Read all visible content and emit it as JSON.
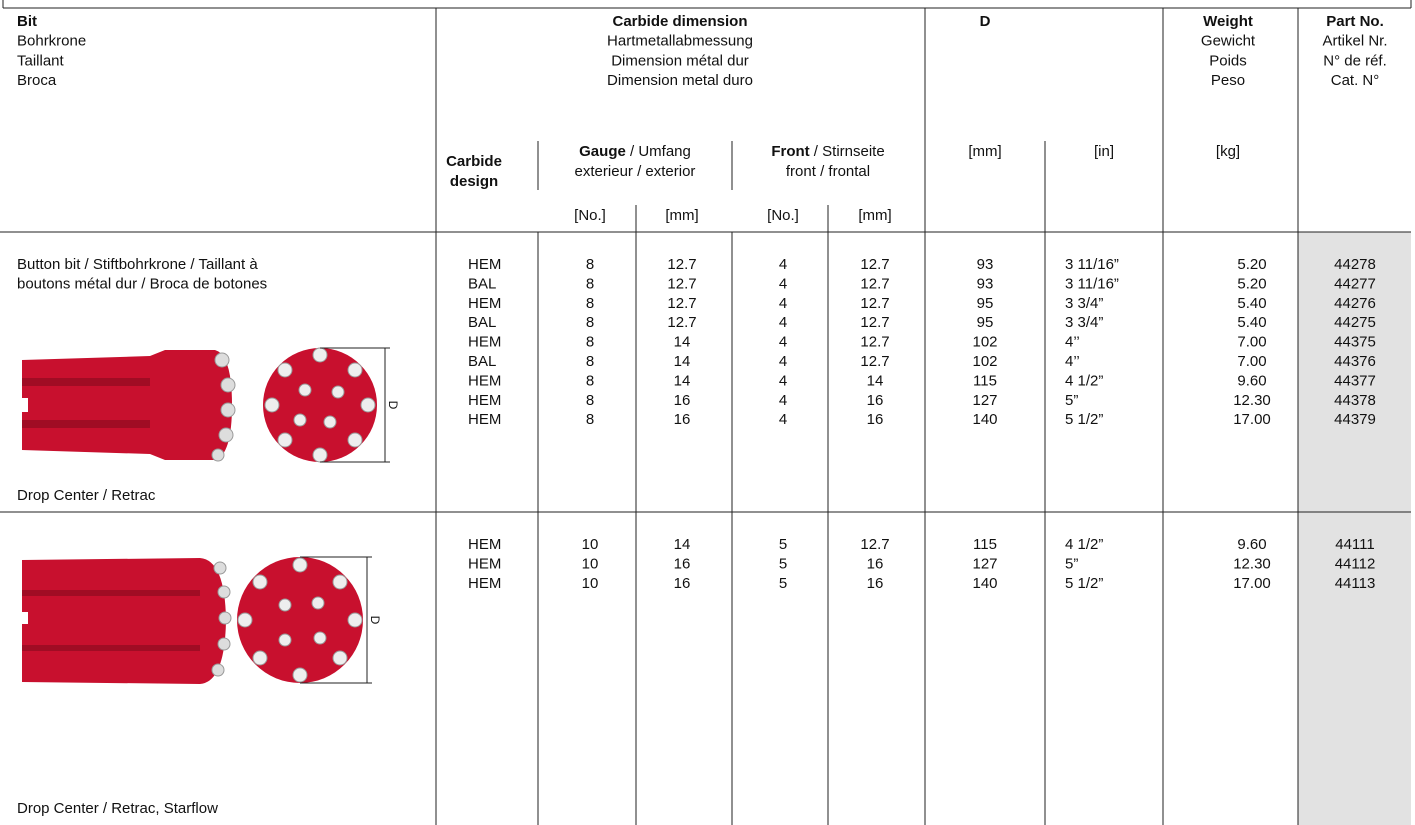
{
  "header": {
    "bit": [
      "Bit",
      "Bohrkrone",
      "Taillant",
      "Broca"
    ],
    "carbide_dimension": [
      "Carbide dimension",
      "Hartmetallabmessung",
      "Dimension métal dur",
      "Dimension metal duro"
    ],
    "d": "D",
    "weight": [
      "Weight",
      "Gewicht",
      "Poids",
      "Peso"
    ],
    "part_no": [
      "Part No.",
      "Artikel Nr.",
      "N° de réf.",
      "Cat. N°"
    ],
    "carbide_design": [
      "Carbide",
      "design"
    ],
    "gauge": {
      "bold": "Gauge",
      "rest": " / Umfang",
      "line2": "exterieur / exterior"
    },
    "front": {
      "bold": "Front",
      "rest": " / Stirnseite",
      "line2": "front / frontal"
    },
    "units": [
      "[No.]",
      "[mm]",
      "[No.]",
      "[mm]",
      "[mm]",
      "[in]",
      "[kg]"
    ]
  },
  "sections": [
    {
      "description": [
        "Button bit / Stiftbohrkrone / Taillant à",
        "boutons métal dur / Broca de botones"
      ],
      "caption": "Drop Center / Retrac",
      "rows": [
        [
          "HEM",
          "8",
          "12.7",
          "4",
          "12.7",
          "93",
          "3 11/16”",
          "5.20",
          "44278"
        ],
        [
          "BAL",
          "8",
          "12.7",
          "4",
          "12.7",
          "93",
          "3 11/16”",
          "5.20",
          "44277"
        ],
        [
          "HEM",
          "8",
          "12.7",
          "4",
          "12.7",
          "95",
          "3 3/4”",
          "5.40",
          "44276"
        ],
        [
          "BAL",
          "8",
          "12.7",
          "4",
          "12.7",
          "95",
          "3 3/4”",
          "5.40",
          "44275"
        ],
        [
          "HEM",
          "8",
          "14",
          "4",
          "12.7",
          "102",
          "4’’",
          "7.00",
          "44375"
        ],
        [
          "BAL",
          "8",
          "14",
          "4",
          "12.7",
          "102",
          "4’’",
          "7.00",
          "44376"
        ],
        [
          "HEM",
          "8",
          "14",
          "4",
          "14",
          "115",
          "4 1/2”",
          "9.60",
          "44377"
        ],
        [
          "HEM",
          "8",
          "16",
          "4",
          "16",
          "127",
          "5”",
          "12.30",
          "44378"
        ],
        [
          "HEM",
          "8",
          "16",
          "4",
          "16",
          "140",
          "5 1/2”",
          "17.00",
          "44379"
        ]
      ]
    },
    {
      "caption": "Drop Center / Retrac, Starflow",
      "rows": [
        [
          "HEM",
          "10",
          "14",
          "5",
          "12.7",
          "115",
          "4 1/2”",
          "9.60",
          "44111"
        ],
        [
          "HEM",
          "10",
          "16",
          "5",
          "16",
          "127",
          "5”",
          "12.30",
          "44112"
        ],
        [
          "HEM",
          "10",
          "16",
          "5",
          "16",
          "140",
          "5 1/2”",
          "17.00",
          "44113"
        ]
      ]
    }
  ]
}
